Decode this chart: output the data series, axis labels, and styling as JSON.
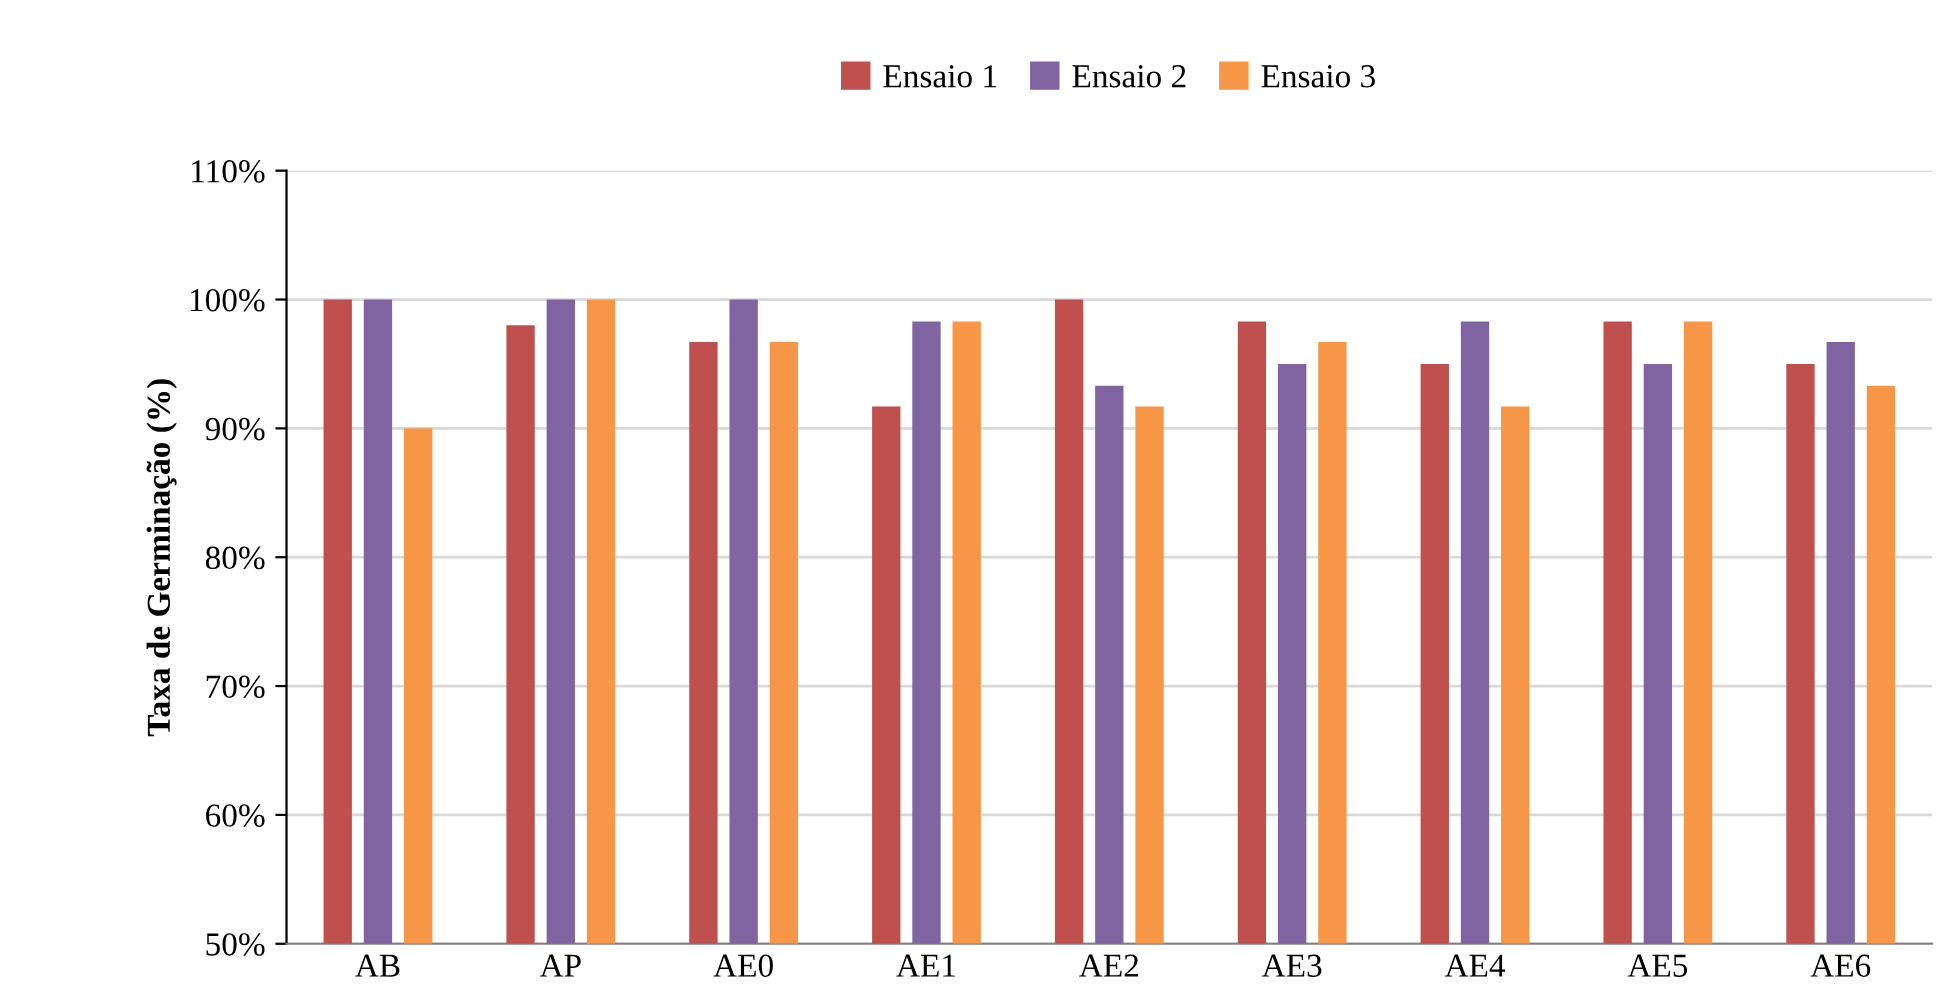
{
  "chart_data": {
    "type": "bar",
    "ylabel": "Taxa de Germinação (%)",
    "categories": [
      "AB",
      "AP",
      "AE0",
      "AE1",
      "AE2",
      "AE3",
      "AE4",
      "AE5",
      "AE6"
    ],
    "series": [
      {
        "name": "Ensaio 1",
        "color": "#c0504d",
        "values": [
          100,
          98,
          96.7,
          91.7,
          100,
          98.3,
          95,
          98.3,
          95
        ]
      },
      {
        "name": "Ensaio 2",
        "color": "#8064a2",
        "values": [
          100,
          100,
          100,
          98.3,
          93.3,
          95,
          98.3,
          95,
          96.7
        ]
      },
      {
        "name": "Ensaio 3",
        "color": "#f79646",
        "values": [
          90,
          100,
          96.7,
          98.3,
          91.7,
          96.7,
          91.7,
          98.3,
          93.3
        ]
      }
    ],
    "ylim": [
      50,
      110
    ],
    "yticks": [
      {
        "value": 50,
        "label": "50%"
      },
      {
        "value": 60,
        "label": "60%"
      },
      {
        "value": 70,
        "label": "70%"
      },
      {
        "value": 80,
        "label": "80%"
      },
      {
        "value": 90,
        "label": "90%"
      },
      {
        "value": 100,
        "label": "100%"
      },
      {
        "value": 110,
        "label": "110%"
      }
    ],
    "grid": "y",
    "legend": "top"
  }
}
